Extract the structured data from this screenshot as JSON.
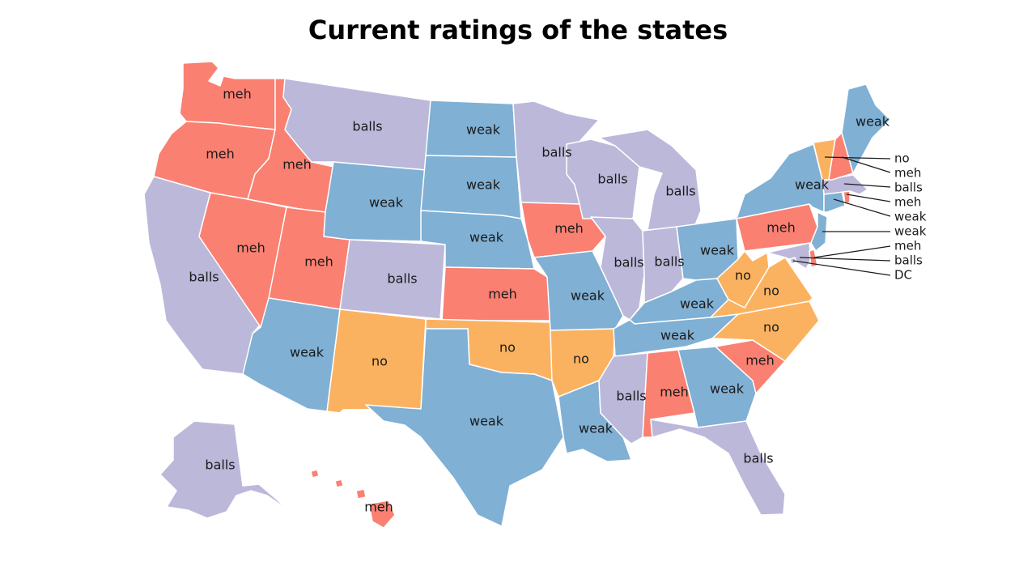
{
  "title": "Current ratings of the states",
  "colors": {
    "meh": "#fa8072",
    "balls": "#bcb8da",
    "weak": "#80b0d4",
    "no": "#fbb260"
  },
  "states": [
    {
      "id": "WA",
      "rating": "meh"
    },
    {
      "id": "OR",
      "rating": "meh"
    },
    {
      "id": "ID",
      "rating": "meh"
    },
    {
      "id": "NV",
      "rating": "meh"
    },
    {
      "id": "UT",
      "rating": "meh"
    },
    {
      "id": "CA",
      "rating": "balls"
    },
    {
      "id": "MT",
      "rating": "balls"
    },
    {
      "id": "WY",
      "rating": "weak"
    },
    {
      "id": "CO",
      "rating": "balls"
    },
    {
      "id": "AZ",
      "rating": "weak"
    },
    {
      "id": "NM",
      "rating": "no"
    },
    {
      "id": "ND",
      "rating": "weak"
    },
    {
      "id": "SD",
      "rating": "weak"
    },
    {
      "id": "NE",
      "rating": "weak"
    },
    {
      "id": "KS",
      "rating": "meh"
    },
    {
      "id": "OK",
      "rating": "no"
    },
    {
      "id": "TX",
      "rating": "weak"
    },
    {
      "id": "MN",
      "rating": "balls"
    },
    {
      "id": "IA",
      "rating": "meh"
    },
    {
      "id": "MO",
      "rating": "weak"
    },
    {
      "id": "AR",
      "rating": "no"
    },
    {
      "id": "LA",
      "rating": "weak"
    },
    {
      "id": "WI",
      "rating": "balls"
    },
    {
      "id": "IL",
      "rating": "balls"
    },
    {
      "id": "MI",
      "rating": "balls"
    },
    {
      "id": "IN",
      "rating": "balls"
    },
    {
      "id": "OH",
      "rating": "weak"
    },
    {
      "id": "KY",
      "rating": "weak"
    },
    {
      "id": "TN",
      "rating": "weak"
    },
    {
      "id": "MS",
      "rating": "balls"
    },
    {
      "id": "AL",
      "rating": "meh"
    },
    {
      "id": "GA",
      "rating": "weak"
    },
    {
      "id": "FL",
      "rating": "balls"
    },
    {
      "id": "SC",
      "rating": "meh"
    },
    {
      "id": "NC",
      "rating": "no"
    },
    {
      "id": "VA",
      "rating": "no"
    },
    {
      "id": "WV",
      "rating": "no"
    },
    {
      "id": "PA",
      "rating": "meh"
    },
    {
      "id": "NY",
      "rating": "weak"
    },
    {
      "id": "ME",
      "rating": "weak"
    },
    {
      "id": "VT",
      "rating": "no"
    },
    {
      "id": "NH",
      "rating": "meh"
    },
    {
      "id": "MA",
      "rating": "balls"
    },
    {
      "id": "RI",
      "rating": "meh"
    },
    {
      "id": "CT",
      "rating": "weak"
    },
    {
      "id": "NJ",
      "rating": "weak"
    },
    {
      "id": "DE",
      "rating": "meh"
    },
    {
      "id": "MD",
      "rating": "balls"
    },
    {
      "id": "DC",
      "rating": "balls"
    },
    {
      "id": "AK",
      "rating": "balls"
    },
    {
      "id": "HI",
      "rating": "meh"
    }
  ],
  "callouts": [
    "no",
    "meh",
    "balls",
    "meh",
    "weak",
    "weak",
    "meh",
    "balls",
    "DC"
  ]
}
